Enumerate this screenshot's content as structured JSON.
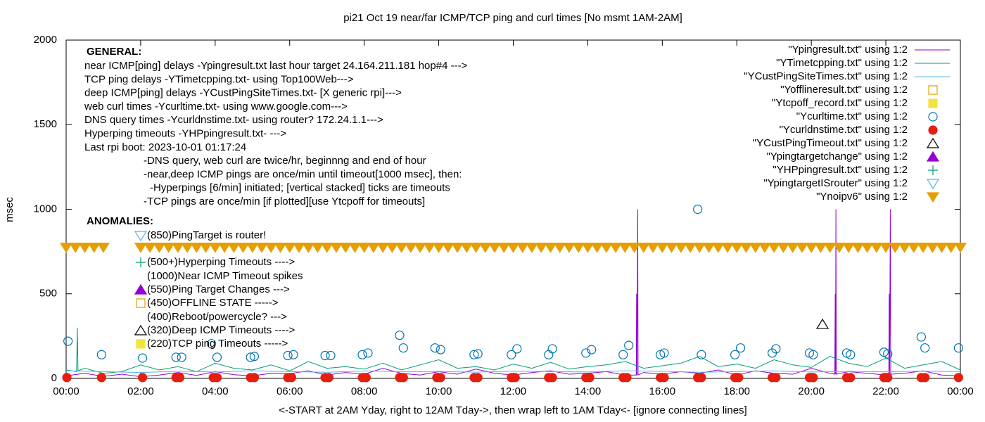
{
  "chart_data": {
    "type": "line",
    "title": "pi21 Oct 19  near/far ICMP/TCP ping and curl times [No msmt 1AM-2AM]",
    "y_label": "msec",
    "x_label": "<-START at 2AM Yday, right to 12AM Tday->, then wrap left to 1AM Tday<- [ignore connecting lines]",
    "xlim": [
      0,
      24
    ],
    "xticks": [
      {
        "value": 0,
        "label": "00:00"
      },
      {
        "value": 2,
        "label": "02:00"
      },
      {
        "value": 4,
        "label": "04:00"
      },
      {
        "value": 6,
        "label": "06:00"
      },
      {
        "value": 8,
        "label": "08:00"
      },
      {
        "value": 10,
        "label": "10:00"
      },
      {
        "value": 12,
        "label": "12:00"
      },
      {
        "value": 14,
        "label": "14:00"
      },
      {
        "value": 16,
        "label": "16:00"
      },
      {
        "value": 18,
        "label": "18:00"
      },
      {
        "value": 20,
        "label": "20:00"
      },
      {
        "value": 22,
        "label": "22:00"
      },
      {
        "value": 24,
        "label": "00:00"
      }
    ],
    "ylim": [
      0,
      2000
    ],
    "yticks": [
      0,
      500,
      1000,
      1500,
      2000
    ],
    "grid": false,
    "legend": "top right",
    "annotations": {
      "general_heading": "GENERAL:",
      "general": [
        "near ICMP[ping] delays -Ypingresult.txt last hour target 24.164.211.181 hop#4 --->",
        "TCP ping delays -YTimetcpping.txt- using Top100Web--->",
        "deep ICMP[ping] delays -YCustPingSiteTimes.txt- [X generic rpi]--->",
        "web curl times -Ycurltime.txt- using www.google.com--->",
        "DNS query times -Ycurldnstime.txt- using router? 172.24.1.1--->",
        "Hyperping timeouts -YHPpingresult.txt- --->",
        "Last rpi boot: 2023-10-01 01:17:24",
        "-DNS query, web curl are twice/hr, beginnng and end of hour",
        "-near,deep ICMP pings are once/min until timeout[1000 msec], then:",
        "-Hyperpings [6/min] initiated; [vertical stacked] ticks are timeouts",
        "-TCP pings are once/min [if plotted][use Ytcpoff for timeouts]"
      ],
      "anomalies_heading": "ANOMALIES:",
      "anomalies": [
        "(850)PingTarget is router!",
        "(500+)Hyperping Timeouts ---->",
        "(1000)Near ICMP Timeout spikes",
        "(550)Ping Target Changes --->",
        "(450)OFFLINE STATE ----->",
        "(400)Reboot/powercycle? --->",
        "(320)Deep ICMP Timeouts ---->",
        "(220)TCP ping Timeouts ----->"
      ]
    },
    "series": [
      {
        "name": "\"Ypingresult.txt\" using 1:2",
        "color": "#9400d3",
        "style": "line",
        "x": [
          0,
          0.5,
          1,
          1.5,
          2,
          2.5,
          3,
          3.5,
          4,
          4.5,
          5,
          5.5,
          6,
          6.5,
          7,
          7.5,
          8,
          8.5,
          9,
          9.5,
          10,
          10.5,
          11,
          11.5,
          12,
          12.5,
          13,
          13.5,
          14,
          14.5,
          15,
          15.3,
          15.31,
          15.32,
          15.34,
          15.35,
          15.5,
          16,
          16.5,
          17,
          17.5,
          18,
          18.5,
          19,
          19.5,
          20,
          20.5,
          20.63,
          20.64,
          20.65,
          20.66,
          20.67,
          21,
          21.5,
          22,
          22.08,
          22.09,
          22.1,
          22.12,
          22.13,
          22.5,
          23,
          23.5,
          24
        ],
        "values": [
          15,
          30,
          12,
          25,
          10,
          20,
          35,
          18,
          40,
          22,
          15,
          30,
          28,
          45,
          20,
          35,
          25,
          60,
          30,
          20,
          40,
          25,
          55,
          30,
          20,
          35,
          45,
          25,
          30,
          40,
          20,
          20,
          500,
          20,
          1000,
          20,
          35,
          25,
          40,
          30,
          50,
          20,
          45,
          30,
          25,
          60,
          30,
          25,
          500,
          25,
          1000,
          25,
          40,
          30,
          20,
          25,
          500,
          25,
          1000,
          25,
          30,
          45,
          20,
          15
        ]
      },
      {
        "name": "\"YTimetcpping.txt\" using 1:2",
        "color": "#009e73",
        "style": "line",
        "x": [
          0,
          0.28,
          0.3,
          0.32,
          0.5,
          1,
          1.5,
          2,
          2.5,
          3,
          3.5,
          4,
          4.5,
          5,
          5.5,
          6,
          6.5,
          7,
          7.5,
          8,
          8.5,
          9,
          9.5,
          10,
          10.5,
          11,
          11.5,
          12,
          12.5,
          13,
          13.5,
          14,
          14.5,
          15,
          15.5,
          16,
          16.5,
          17,
          17.5,
          18,
          18.5,
          19,
          19.5,
          20,
          20.5,
          21,
          21.5,
          22,
          22.5,
          23,
          23.5,
          24
        ],
        "values": [
          50,
          40,
          300,
          45,
          60,
          30,
          40,
          80,
          50,
          70,
          40,
          90,
          60,
          50,
          80,
          45,
          100,
          60,
          70,
          55,
          90,
          50,
          80,
          110,
          60,
          70,
          50,
          85,
          60,
          95,
          55,
          70,
          80,
          100,
          60,
          75,
          90,
          130,
          70,
          85,
          60,
          110,
          80,
          65,
          130,
          90,
          70,
          120,
          60,
          80,
          100,
          50
        ]
      },
      {
        "name": "\"YCustPingSiteTimes.txt\" using 1:2",
        "color": "#56b4e9",
        "style": "line",
        "x": [
          0,
          1,
          2,
          3,
          4,
          5,
          6,
          7,
          8,
          9,
          10,
          11,
          12,
          13,
          14,
          15,
          16,
          17,
          18,
          19,
          20,
          21,
          22,
          23,
          24
        ],
        "values": [
          45,
          40,
          35,
          42,
          38,
          45,
          40,
          36,
          44,
          39,
          41,
          37,
          43,
          40,
          38,
          45,
          42,
          36,
          40,
          44,
          38,
          41,
          39,
          43,
          40
        ]
      },
      {
        "name": "\"Yofflineresult.txt\" using 1:2",
        "color": "#e69f00",
        "style": "square-open",
        "x": [],
        "values": []
      },
      {
        "name": "\"Ytcpoff_record.txt\" using 1:2",
        "color": "#f0e442",
        "style": "square-filled",
        "x": [],
        "values": []
      },
      {
        "name": "\"Ycurltime.txt\" using 1:2",
        "color": "#0072b2",
        "style": "circle-open",
        "x": [
          0.05,
          0.95,
          2.05,
          2.95,
          3.1,
          3.9,
          4.05,
          4.95,
          5.05,
          5.95,
          6.1,
          6.95,
          7.1,
          7.95,
          8.1,
          8.95,
          9.05,
          9.9,
          10.05,
          10.95,
          11.05,
          11.95,
          12.1,
          12.95,
          13.05,
          13.95,
          14.1,
          14.95,
          15.1,
          15.95,
          16.05,
          16.95,
          17.05,
          17.95,
          18.1,
          18.95,
          19.05,
          19.95,
          20.05,
          20.95,
          21.05,
          21.95,
          22.05,
          22.95,
          23.05,
          23.95
        ],
        "values": [
          220,
          140,
          120,
          125,
          125,
          205,
          125,
          125,
          130,
          135,
          140,
          135,
          135,
          140,
          150,
          255,
          180,
          180,
          170,
          140,
          145,
          140,
          175,
          140,
          175,
          150,
          170,
          140,
          195,
          140,
          150,
          1000,
          140,
          140,
          180,
          150,
          175,
          150,
          140,
          150,
          140,
          155,
          145,
          245,
          180,
          180
        ]
      },
      {
        "name": "\"Ycurldnstime.txt\" using 1:2",
        "color": "#e51e10",
        "style": "circle-filled",
        "x": [
          0.02,
          0.95,
          2.05,
          2.95,
          3.05,
          3.95,
          4.05,
          4.95,
          5.05,
          5.95,
          6.05,
          6.95,
          7.05,
          7.95,
          8.05,
          8.95,
          9.05,
          9.95,
          10.05,
          10.95,
          11.05,
          11.95,
          12.05,
          12.95,
          13.05,
          13.95,
          14.05,
          14.95,
          15.05,
          15.95,
          16.05,
          16.95,
          17.05,
          17.95,
          18.05,
          18.95,
          19.05,
          19.95,
          20.05,
          20.95,
          21.05,
          21.95,
          22.05,
          22.95,
          23.05,
          23.95
        ],
        "values": [
          5,
          5,
          5,
          5,
          5,
          5,
          5,
          5,
          5,
          5,
          5,
          5,
          5,
          5,
          5,
          5,
          5,
          5,
          5,
          5,
          5,
          5,
          5,
          5,
          5,
          5,
          5,
          5,
          5,
          5,
          5,
          5,
          5,
          5,
          5,
          5,
          5,
          5,
          5,
          5,
          5,
          5,
          5,
          5,
          5,
          5
        ]
      },
      {
        "name": "\"YCustPingTimeout.txt\" using 1:2",
        "color": "#000000",
        "style": "triangle-open",
        "x": [
          20.3
        ],
        "values": [
          320
        ]
      },
      {
        "name": "\"Ypingtargetchange\" using 1:2",
        "color": "#9400d3",
        "style": "triangle-filled",
        "x": [],
        "values": []
      },
      {
        "name": "\"YHPpingresult.txt\" using 1:2",
        "color": "#009e73",
        "style": "plus",
        "x": [],
        "values": []
      },
      {
        "name": "\"YpingtargetISrouter\" using 1:2",
        "color": "#56b4e9",
        "style": "triangle-down-open",
        "x": [],
        "values": []
      },
      {
        "name": "\"Ynoipv6\" using 1:2",
        "color": "#e69f00",
        "style": "triangle-down-open",
        "x": [
          0,
          0.25,
          0.5,
          0.75,
          1,
          2,
          2.25,
          2.5,
          2.75,
          3,
          3.25,
          3.5,
          3.75,
          4,
          4.25,
          4.5,
          4.75,
          5,
          5.25,
          5.5,
          5.75,
          6,
          6.25,
          6.5,
          6.75,
          7,
          7.25,
          7.5,
          7.75,
          8,
          8.25,
          8.5,
          8.75,
          9,
          9.25,
          9.5,
          9.75,
          10,
          10.25,
          10.5,
          10.75,
          11,
          11.25,
          11.5,
          11.75,
          12,
          12.25,
          12.5,
          12.75,
          13,
          13.25,
          13.5,
          13.75,
          14,
          14.25,
          14.5,
          14.75,
          15,
          15.25,
          15.5,
          15.75,
          16,
          16.25,
          16.5,
          16.75,
          17,
          17.25,
          17.5,
          17.75,
          18,
          18.25,
          18.5,
          18.75,
          19,
          19.25,
          19.5,
          19.75,
          20,
          20.25,
          20.5,
          20.75,
          21,
          21.25,
          21.5,
          21.75,
          22,
          22.25,
          22.5,
          22.75,
          23,
          23.25,
          23.5,
          23.75,
          24
        ],
        "values": [
          775,
          775,
          775,
          775,
          775,
          775,
          775,
          775,
          775,
          775,
          775,
          775,
          775,
          775,
          775,
          775,
          775,
          775,
          775,
          775,
          775,
          775,
          775,
          775,
          775,
          775,
          775,
          775,
          775,
          775,
          775,
          775,
          775,
          775,
          775,
          775,
          775,
          775,
          775,
          775,
          775,
          775,
          775,
          775,
          775,
          775,
          775,
          775,
          775,
          775,
          775,
          775,
          775,
          775,
          775,
          775,
          775,
          775,
          775,
          775,
          775,
          775,
          775,
          775,
          775,
          775,
          775,
          775,
          775,
          775,
          775,
          775,
          775,
          775,
          775,
          775,
          775,
          775,
          775,
          775,
          775,
          775,
          775,
          775,
          775,
          775,
          775,
          775,
          775,
          775,
          775,
          775,
          775,
          775
        ]
      }
    ]
  }
}
